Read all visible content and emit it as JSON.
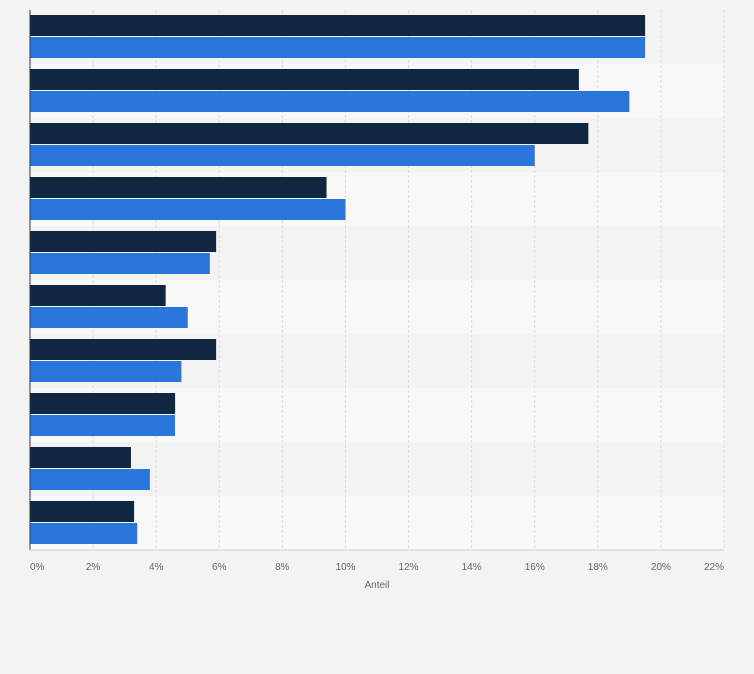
{
  "chart_data": {
    "type": "bar",
    "orientation": "horizontal",
    "title": "",
    "xlabel": "Anteil",
    "ylabel": "",
    "xlim": [
      0,
      22
    ],
    "tick_values": [
      0,
      2,
      4,
      6,
      8,
      10,
      12,
      14,
      16,
      18,
      20,
      22
    ],
    "tick_labels": [
      "0%",
      "2%",
      "4%",
      "6%",
      "8%",
      "10%",
      "12%",
      "14%",
      "16%",
      "18%",
      "20%",
      "22%"
    ],
    "grid": true,
    "legend": "none",
    "categories": [
      "",
      "",
      "",
      "",
      "",
      "",
      "",
      "",
      "",
      ""
    ],
    "series": [
      {
        "color": "#0f2741",
        "values": [
          19.5,
          17.4,
          17.7,
          9.4,
          5.9,
          4.3,
          5.9,
          4.6,
          3.2,
          3.3
        ]
      },
      {
        "color": "#2a77db",
        "values": [
          19.5,
          19.0,
          16.0,
          10.0,
          5.7,
          5.0,
          4.8,
          4.6,
          3.8,
          3.4
        ]
      }
    ],
    "colors": {
      "background": "#f3f3f3",
      "band_light": "#f8f8f8",
      "band_dark": "#f3f3f3",
      "grid": "#dcdcdc",
      "axis": "#333333",
      "tick_text": "#666666"
    }
  }
}
